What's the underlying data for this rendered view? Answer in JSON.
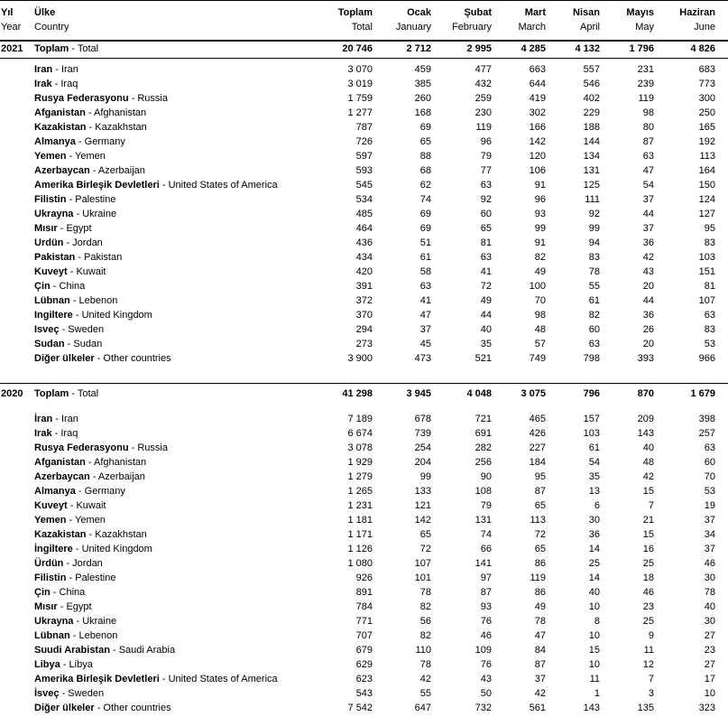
{
  "chart_data": {
    "type": "table",
    "separator": " - ",
    "header": {
      "year": {
        "tr": "Yıl",
        "en": "Year"
      },
      "country": {
        "tr": "Ülke",
        "en": "Country"
      },
      "months": [
        {
          "tr": "Toplam",
          "en": "Total"
        },
        {
          "tr": "Ocak",
          "en": "January"
        },
        {
          "tr": "Şubat",
          "en": "February"
        },
        {
          "tr": "Mart",
          "en": "March"
        },
        {
          "tr": "Nisan",
          "en": "April"
        },
        {
          "tr": "Mayıs",
          "en": "May"
        },
        {
          "tr": "Haziran",
          "en": "June"
        }
      ]
    },
    "sections": [
      {
        "year": "2021",
        "total": {
          "tr": "Toplam",
          "en": "Total",
          "values": [
            "20 746",
            "2 712",
            "2 995",
            "4 285",
            "4 132",
            "1 796",
            "4 826"
          ]
        },
        "rows": [
          {
            "tr": "Iran",
            "en": "Iran",
            "values": [
              "3 070",
              "459",
              "477",
              "663",
              "557",
              "231",
              "683"
            ]
          },
          {
            "tr": "Irak",
            "en": "Iraq",
            "values": [
              "3 019",
              "385",
              "432",
              "644",
              "546",
              "239",
              "773"
            ]
          },
          {
            "tr": "Rusya Federasyonu",
            "en": "Russia",
            "values": [
              "1 759",
              "260",
              "259",
              "419",
              "402",
              "119",
              "300"
            ]
          },
          {
            "tr": "Afganistan",
            "en": "Afghanistan",
            "values": [
              "1 277",
              "168",
              "230",
              "302",
              "229",
              "98",
              "250"
            ]
          },
          {
            "tr": "Kazakistan",
            "en": "Kazakhstan",
            "values": [
              "787",
              "69",
              "119",
              "166",
              "188",
              "80",
              "165"
            ]
          },
          {
            "tr": "Almanya",
            "en": "Germany",
            "values": [
              "726",
              "65",
              "96",
              "142",
              "144",
              "87",
              "192"
            ]
          },
          {
            "tr": "Yemen",
            "en": "Yemen",
            "values": [
              "597",
              "88",
              "79",
              "120",
              "134",
              "63",
              "113"
            ]
          },
          {
            "tr": "Azerbaycan",
            "en": "Azerbaijan",
            "values": [
              "593",
              "68",
              "77",
              "106",
              "131",
              "47",
              "164"
            ]
          },
          {
            "tr": "Amerika Birleşik Devletleri",
            "en": "United States of America",
            "values": [
              "545",
              "62",
              "63",
              "91",
              "125",
              "54",
              "150"
            ]
          },
          {
            "tr": "Filistin",
            "en": "Palestine",
            "values": [
              "534",
              "74",
              "92",
              "96",
              "111",
              "37",
              "124"
            ]
          },
          {
            "tr": "Ukrayna",
            "en": "Ukraine",
            "values": [
              "485",
              "69",
              "60",
              "93",
              "92",
              "44",
              "127"
            ]
          },
          {
            "tr": "Mısır",
            "en": "Egypt",
            "values": [
              "464",
              "69",
              "65",
              "99",
              "99",
              "37",
              "95"
            ]
          },
          {
            "tr": "Urdün",
            "en": "Jordan",
            "values": [
              "436",
              "51",
              "81",
              "91",
              "94",
              "36",
              "83"
            ]
          },
          {
            "tr": "Pakistan",
            "en": "Pakistan",
            "values": [
              "434",
              "61",
              "63",
              "82",
              "83",
              "42",
              "103"
            ]
          },
          {
            "tr": "Kuveyt",
            "en": "Kuwait",
            "values": [
              "420",
              "58",
              "41",
              "49",
              "78",
              "43",
              "151"
            ]
          },
          {
            "tr": "Çin",
            "en": "China",
            "values": [
              "391",
              "63",
              "72",
              "100",
              "55",
              "20",
              "81"
            ]
          },
          {
            "tr": "Lübnan",
            "en": "Lebenon",
            "values": [
              "372",
              "41",
              "49",
              "70",
              "61",
              "44",
              "107"
            ]
          },
          {
            "tr": "Ingiltere",
            "en": "United Kingdom",
            "values": [
              "370",
              "47",
              "44",
              "98",
              "82",
              "36",
              "63"
            ]
          },
          {
            "tr": "Isveç",
            "en": "Sweden",
            "values": [
              "294",
              "37",
              "40",
              "48",
              "60",
              "26",
              "83"
            ]
          },
          {
            "tr": "Sudan",
            "en": "Sudan",
            "values": [
              "273",
              "45",
              "35",
              "57",
              "63",
              "20",
              "53"
            ]
          },
          {
            "tr": "Diğer ülkeler",
            "en": "Other countries",
            "values": [
              "3 900",
              "473",
              "521",
              "749",
              "798",
              "393",
              "966"
            ]
          }
        ]
      },
      {
        "year": "2020",
        "total": {
          "tr": "Toplam",
          "en": "Total",
          "values": [
            "41 298",
            "3 945",
            "4 048",
            "3 075",
            "796",
            "870",
            "1 679"
          ]
        },
        "rows": [
          {
            "tr": "İran",
            "en": "Iran",
            "values": [
              "7 189",
              "678",
              "721",
              "465",
              "157",
              "209",
              "398"
            ]
          },
          {
            "tr": "Irak",
            "en": "Iraq",
            "values": [
              "6 674",
              "739",
              "691",
              "426",
              "103",
              "143",
              "257"
            ]
          },
          {
            "tr": "Rusya Federasyonu",
            "en": "Russia",
            "values": [
              "3 078",
              "254",
              "282",
              "227",
              "61",
              "40",
              "63"
            ]
          },
          {
            "tr": "Afganistan",
            "en": "Afghanistan",
            "values": [
              "1 929",
              "204",
              "256",
              "184",
              "54",
              "48",
              "60"
            ]
          },
          {
            "tr": "Azerbaycan",
            "en": "Azerbaijan",
            "values": [
              "1 279",
              "99",
              "90",
              "95",
              "35",
              "42",
              "70"
            ]
          },
          {
            "tr": "Almanya",
            "en": "Germany",
            "values": [
              "1 265",
              "133",
              "108",
              "87",
              "13",
              "15",
              "53"
            ]
          },
          {
            "tr": "Kuveyt",
            "en": "Kuwait",
            "values": [
              "1 231",
              "121",
              "79",
              "65",
              "6",
              "7",
              "19"
            ]
          },
          {
            "tr": "Yemen",
            "en": "Yemen",
            "values": [
              "1 181",
              "142",
              "131",
              "113",
              "30",
              "21",
              "37"
            ]
          },
          {
            "tr": "Kazakistan",
            "en": "Kazakhstan",
            "values": [
              "1 171",
              "65",
              "74",
              "72",
              "36",
              "15",
              "34"
            ]
          },
          {
            "tr": "İngiltere",
            "en": "United Kingdom",
            "values": [
              "1 126",
              "72",
              "66",
              "65",
              "14",
              "16",
              "37"
            ]
          },
          {
            "tr": "Ürdün",
            "en": "Jordan",
            "values": [
              "1 080",
              "107",
              "141",
              "86",
              "25",
              "25",
              "46"
            ]
          },
          {
            "tr": "Filistin",
            "en": "Palestine",
            "values": [
              "926",
              "101",
              "97",
              "119",
              "14",
              "18",
              "30"
            ]
          },
          {
            "tr": "Çin",
            "en": "China",
            "values": [
              "891",
              "78",
              "87",
              "86",
              "40",
              "46",
              "78"
            ]
          },
          {
            "tr": "Mısır",
            "en": "Egypt",
            "values": [
              "784",
              "82",
              "93",
              "49",
              "10",
              "23",
              "40"
            ]
          },
          {
            "tr": "Ukrayna",
            "en": "Ukraine",
            "values": [
              "771",
              "56",
              "76",
              "78",
              "8",
              "25",
              "30"
            ]
          },
          {
            "tr": "Lübnan",
            "en": "Lebenon",
            "values": [
              "707",
              "82",
              "46",
              "47",
              "10",
              "9",
              "27"
            ]
          },
          {
            "tr": "Suudi Arabistan",
            "en": "Saudi Arabia",
            "values": [
              "679",
              "110",
              "109",
              "84",
              "15",
              "11",
              "23"
            ]
          },
          {
            "tr": "Libya",
            "en": "Libya",
            "values": [
              "629",
              "78",
              "76",
              "87",
              "10",
              "12",
              "27"
            ]
          },
          {
            "tr": "Amerika Birleşik Devletleri",
            "en": "United States of America",
            "values": [
              "623",
              "42",
              "43",
              "37",
              "11",
              "7",
              "17"
            ]
          },
          {
            "tr": "İsveç",
            "en": "Sweden",
            "values": [
              "543",
              "55",
              "50",
              "42",
              "1",
              "3",
              "10"
            ]
          },
          {
            "tr": "Diğer ülkeler",
            "en": "Other countries",
            "values": [
              "7 542",
              "647",
              "732",
              "561",
              "143",
              "135",
              "323"
            ]
          }
        ]
      }
    ]
  },
  "colors": {
    "text": "#000000",
    "rule": "#000000",
    "background": "#ffffff"
  }
}
